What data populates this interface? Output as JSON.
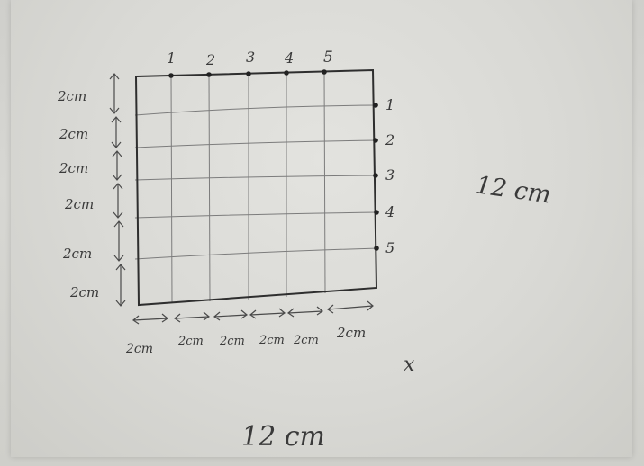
{
  "top_numbers": [
    "1",
    "2",
    "3",
    "4",
    "5"
  ],
  "right_numbers": [
    "1",
    "2",
    "3",
    "4",
    "5"
  ],
  "left_labels": [
    "2cm",
    "2cm",
    "2cm",
    "2cm",
    "2cm",
    "2cm"
  ],
  "bottom_labels": [
    "2cm",
    "2cm",
    "2cm",
    "2cm",
    "2cm",
    "2cm"
  ],
  "height_label": "12 cm",
  "width_label": "12 cm",
  "x_mark": "x",
  "colors": {
    "paper": "#dededa",
    "ink": "#2e2e2e",
    "pencil": "#7c7c7c"
  }
}
